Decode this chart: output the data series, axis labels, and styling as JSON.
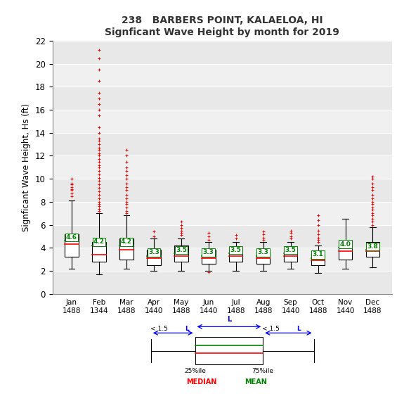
{
  "title1": "238   BARBERS POINT, KALAELOA, HI",
  "title2": "Signficant Wave Height by month for 2019",
  "ylabel": "Signficant Wave Height, Hs (ft)",
  "months": [
    "Jan",
    "Feb",
    "Mar",
    "Apr",
    "May",
    "Jun",
    "Jul",
    "Aug",
    "Sep",
    "Oct",
    "Nov",
    "Dec"
  ],
  "counts": [
    1488,
    1344,
    1488,
    1440,
    1488,
    1440,
    1488,
    1488,
    1440,
    1488,
    1440,
    1488
  ],
  "ylim": [
    0,
    22
  ],
  "yticks": [
    0,
    2,
    4,
    6,
    8,
    10,
    12,
    14,
    16,
    18,
    20,
    22
  ],
  "box_stats": [
    {
      "q1": 3.2,
      "median": 4.3,
      "q3": 5.2,
      "mean": 4.6,
      "whislo": 2.2,
      "whishi": 8.1,
      "fliers_high": [
        8.5,
        8.7,
        9.0,
        9.1,
        9.3,
        9.5,
        9.6,
        10.0
      ],
      "fliers_low": []
    },
    {
      "q1": 2.8,
      "median": 3.4,
      "q3": 4.5,
      "mean": 4.2,
      "whislo": 1.7,
      "whishi": 7.0,
      "fliers_high": [
        7.2,
        7.4,
        7.6,
        7.8,
        8.0,
        8.3,
        8.6,
        8.9,
        9.2,
        9.5,
        9.8,
        10.1,
        10.4,
        10.7,
        11.0,
        11.2,
        11.5,
        11.7,
        12.0,
        12.2,
        12.5,
        12.7,
        13.0,
        13.3,
        13.5,
        14.0,
        14.5,
        15.5,
        16.0,
        16.5,
        17.0,
        17.5,
        18.5,
        19.5,
        20.5,
        21.2
      ],
      "fliers_low": []
    },
    {
      "q1": 3.0,
      "median": 3.8,
      "q3": 4.8,
      "mean": 4.2,
      "whislo": 2.2,
      "whishi": 6.8,
      "fliers_high": [
        7.0,
        7.2,
        7.5,
        7.8,
        8.0,
        8.3,
        8.6,
        9.0,
        9.3,
        9.6,
        10.0,
        10.3,
        10.7,
        11.0,
        11.5,
        12.0,
        12.5
      ],
      "fliers_low": []
    },
    {
      "q1": 2.5,
      "median": 3.1,
      "q3": 3.8,
      "mean": 3.3,
      "whislo": 2.0,
      "whishi": 4.8,
      "fliers_high": [
        5.0,
        5.4
      ],
      "fliers_low": []
    },
    {
      "q1": 2.8,
      "median": 3.3,
      "q3": 4.2,
      "mean": 3.5,
      "whislo": 2.0,
      "whishi": 4.8,
      "fliers_high": [
        5.1,
        5.3,
        5.5,
        5.7,
        6.0,
        6.3
      ],
      "fliers_low": []
    },
    {
      "q1": 2.6,
      "median": 3.1,
      "q3": 3.8,
      "mean": 3.3,
      "whislo": 2.0,
      "whishi": 4.5,
      "fliers_high": [
        4.7,
        5.0,
        5.3
      ],
      "fliers_low": [
        1.85
      ]
    },
    {
      "q1": 2.8,
      "median": 3.3,
      "q3": 4.1,
      "mean": 3.5,
      "whislo": 2.0,
      "whishi": 4.5,
      "fliers_high": [
        4.8,
        5.1
      ],
      "fliers_low": []
    },
    {
      "q1": 2.6,
      "median": 3.1,
      "q3": 3.7,
      "mean": 3.3,
      "whislo": 2.0,
      "whishi": 4.5,
      "fliers_high": [
        4.7,
        4.9,
        5.2,
        5.4
      ],
      "fliers_low": []
    },
    {
      "q1": 2.8,
      "median": 3.3,
      "q3": 4.0,
      "mean": 3.5,
      "whislo": 2.2,
      "whishi": 4.5,
      "fliers_high": [
        4.8,
        5.0,
        5.3,
        5.5
      ],
      "fliers_low": []
    },
    {
      "q1": 2.5,
      "median": 2.9,
      "q3": 3.5,
      "mean": 3.1,
      "whislo": 1.8,
      "whishi": 4.2,
      "fliers_high": [
        4.5,
        4.7,
        4.9,
        5.2,
        5.5,
        6.0,
        6.4,
        6.8
      ],
      "fliers_low": []
    },
    {
      "q1": 3.0,
      "median": 3.7,
      "q3": 4.6,
      "mean": 4.0,
      "whislo": 2.2,
      "whishi": 6.5,
      "fliers_high": [],
      "fliers_low": []
    },
    {
      "q1": 3.2,
      "median": 3.7,
      "q3": 4.5,
      "mean": 3.8,
      "whislo": 2.3,
      "whishi": 5.8,
      "fliers_high": [
        6.0,
        6.3,
        6.5,
        6.8,
        7.0,
        7.3,
        7.5,
        7.8,
        8.0,
        8.3,
        8.6,
        9.0,
        9.3,
        9.6,
        10.0,
        10.2
      ],
      "fliers_low": []
    }
  ],
  "band_colors": [
    "#e8e8e8",
    "#f0f0f0"
  ],
  "box_facecolor": "white",
  "box_edgecolor": "black",
  "median_color": "red",
  "mean_color": "green",
  "whisker_color": "black",
  "flier_color": "red",
  "flier_marker": "+",
  "fig_facecolor": "white",
  "axes_facecolor": "#e8e8e8",
  "mean_label_color": "green",
  "box_width": 0.5
}
